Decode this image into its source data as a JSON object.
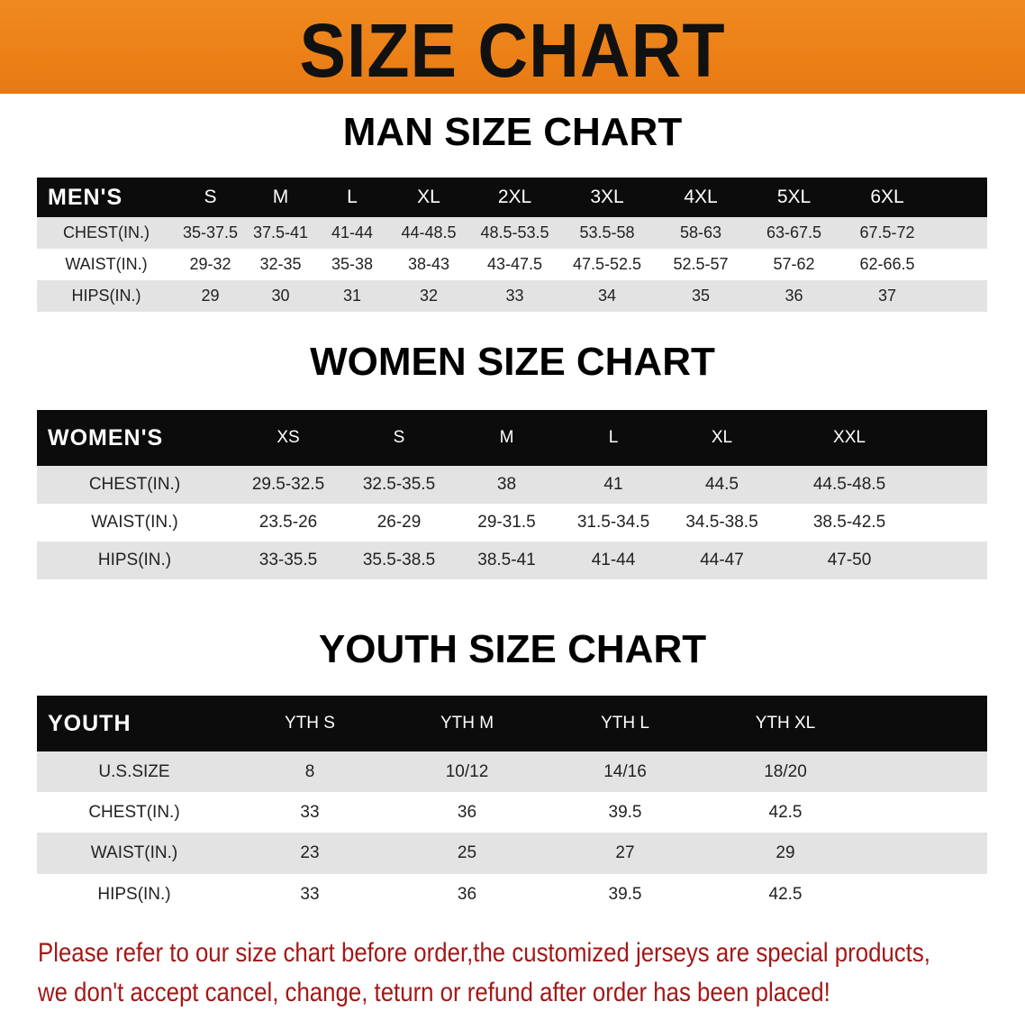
{
  "title": "SIZE CHART",
  "men": {
    "section_title": "MAN SIZE CHART",
    "header": [
      "MEN'S",
      "S",
      "M",
      "L",
      "XL",
      "2XL",
      "3XL",
      "4XL",
      "5XL",
      "6XL"
    ],
    "rows": [
      [
        "CHEST(IN.)",
        "35-37.5",
        "37.5-41",
        "41-44",
        "44-48.5",
        "48.5-53.5",
        "53.5-58",
        "58-63",
        "63-67.5",
        "67.5-72"
      ],
      [
        "WAIST(IN.)",
        "29-32",
        "32-35",
        "35-38",
        "38-43",
        "43-47.5",
        "47.5-52.5",
        "52.5-57",
        "57-62",
        "62-66.5"
      ],
      [
        "HIPS(IN.)",
        "29",
        "30",
        "31",
        "32",
        "33",
        "34",
        "35",
        "36",
        "37"
      ]
    ]
  },
  "women": {
    "section_title": "WOMEN SIZE CHART",
    "header": [
      "WOMEN'S",
      "XS",
      "S",
      "M",
      "L",
      "XL",
      "XXL"
    ],
    "rows": [
      [
        "CHEST(IN.)",
        "29.5-32.5",
        "32.5-35.5",
        "38",
        "41",
        "44.5",
        "44.5-48.5"
      ],
      [
        "WAIST(IN.)",
        "23.5-26",
        "26-29",
        "29-31.5",
        "31.5-34.5",
        "34.5-38.5",
        "38.5-42.5"
      ],
      [
        "HIPS(IN.)",
        "33-35.5",
        "35.5-38.5",
        "38.5-41",
        "41-44",
        "44-47",
        "47-50"
      ]
    ]
  },
  "youth": {
    "section_title": "YOUTH SIZE CHART",
    "header": [
      "YOUTH",
      "YTH S",
      "YTH M",
      "YTH L",
      "YTH XL"
    ],
    "rows": [
      [
        "U.S.SIZE",
        "8",
        "10/12",
        "14/16",
        "18/20"
      ],
      [
        "CHEST(IN.)",
        "33",
        "36",
        "39.5",
        "42.5"
      ],
      [
        "WAIST(IN.)",
        "23",
        "25",
        "27",
        "29"
      ],
      [
        "HIPS(IN.)",
        "33",
        "36",
        "39.5",
        "42.5"
      ]
    ]
  },
  "note": {
    "line1": "Please refer to our size chart before order,the customized jerseys are special products,",
    "line2": "we don't accept cancel, change, teturn or refund after order has been placed!"
  },
  "colors": {
    "banner": "#ec8018",
    "header_bg": "#0c0c0c",
    "row_gray": "#e3e3e3",
    "note": "#a31818"
  }
}
